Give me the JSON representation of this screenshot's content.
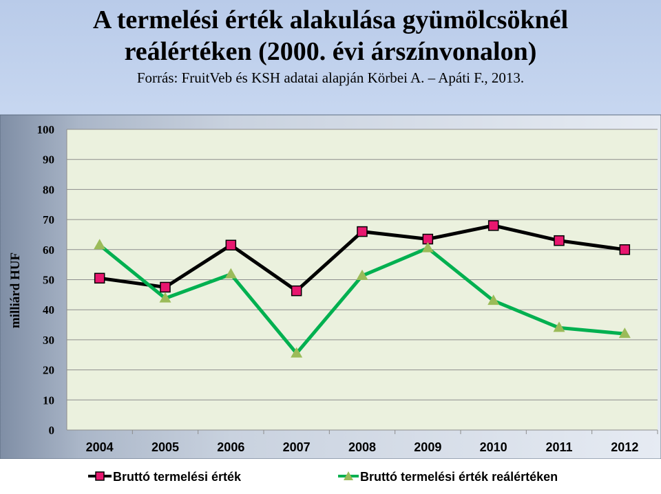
{
  "title_line1": "A termelési érték alakulása gyümölcsöknél",
  "title_line2": "reálértéken  (2000. évi árszínvonalon)",
  "subtitle": "Forrás: FruitVeb és KSH adatai alapján Körbei A. – Apáti F., 2013.",
  "colors": {
    "plot_bg": "#ebf1de",
    "series1": "#000000",
    "series1_marker": "#e8176f",
    "series2": "#00b050",
    "series2_marker": "#9bbb59",
    "grid": "#8c8c8c"
  },
  "chart_data": {
    "type": "line",
    "title": "A termelési érték alakulása gyümölcsöknél reálértéken  (2000. évi árszínvonalon)",
    "xlabel": "",
    "ylabel": "milliárd HUF",
    "ylim": [
      0,
      100
    ],
    "yticks": [
      0,
      10,
      20,
      30,
      40,
      50,
      60,
      70,
      80,
      90,
      100
    ],
    "categories": [
      "2004",
      "2005",
      "2006",
      "2007",
      "2008",
      "2009",
      "2010",
      "2011",
      "2012"
    ],
    "grid": true,
    "legend_position": "bottom",
    "series": [
      {
        "name": "Bruttó termelési érték",
        "marker": "square",
        "values": [
          50.5,
          47.5,
          61.5,
          46.3,
          66,
          63.5,
          68,
          63,
          60
        ]
      },
      {
        "name": "Bruttó termelési érték reálértéken",
        "marker": "triangle",
        "values": [
          61.5,
          43.8,
          51.8,
          25.5,
          51.3,
          60.5,
          43,
          34,
          32
        ]
      }
    ]
  }
}
